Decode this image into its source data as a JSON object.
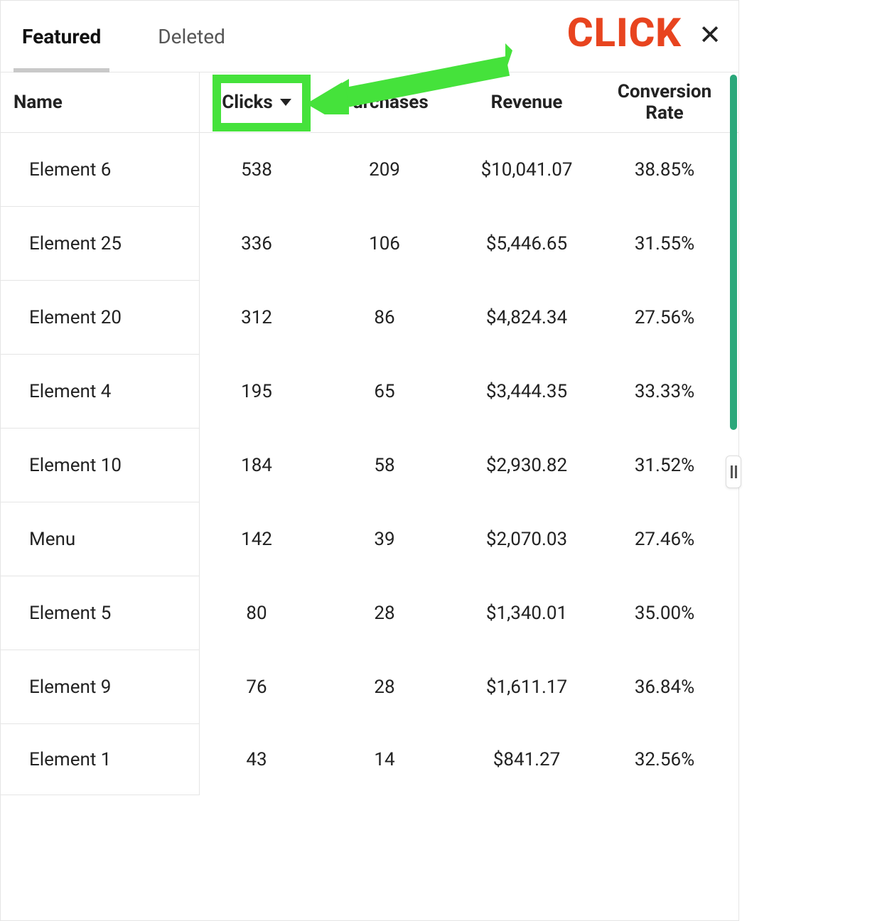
{
  "annotation": {
    "label": "CLICK",
    "color": "#e8441f",
    "highlight_color": "#45e23b"
  },
  "tabs": {
    "featured": "Featured",
    "deleted": "Deleted",
    "active": "featured"
  },
  "columns": {
    "name": "Name",
    "clicks": "Clicks",
    "purchases": "Purchases",
    "revenue": "Revenue",
    "conversion": "Conversion Rate",
    "sorted_by": "clicks",
    "sort_dir": "desc"
  },
  "rows": [
    {
      "name": "Element 6",
      "clicks": "538",
      "purchases": "209",
      "revenue": "$10,041.07",
      "conversion": "38.85%"
    },
    {
      "name": "Element 25",
      "clicks": "336",
      "purchases": "106",
      "revenue": "$5,446.65",
      "conversion": "31.55%"
    },
    {
      "name": "Element 20",
      "clicks": "312",
      "purchases": "86",
      "revenue": "$4,824.34",
      "conversion": "27.56%"
    },
    {
      "name": "Element 4",
      "clicks": "195",
      "purchases": "65",
      "revenue": "$3,444.35",
      "conversion": "33.33%"
    },
    {
      "name": "Element 10",
      "clicks": "184",
      "purchases": "58",
      "revenue": "$2,930.82",
      "conversion": "31.52%"
    },
    {
      "name": "Menu",
      "clicks": "142",
      "purchases": "39",
      "revenue": "$2,070.03",
      "conversion": "27.46%"
    },
    {
      "name": "Element 5",
      "clicks": "80",
      "purchases": "28",
      "revenue": "$1,340.01",
      "conversion": "35.00%"
    },
    {
      "name": "Element 9",
      "clicks": "76",
      "purchases": "28",
      "revenue": "$1,611.17",
      "conversion": "36.84%"
    },
    {
      "name": "Element 1",
      "clicks": "43",
      "purchases": "14",
      "revenue": "$841.27",
      "conversion": "32.56%"
    }
  ],
  "scrollbar": {
    "thumb_color": "#2aa77a"
  }
}
